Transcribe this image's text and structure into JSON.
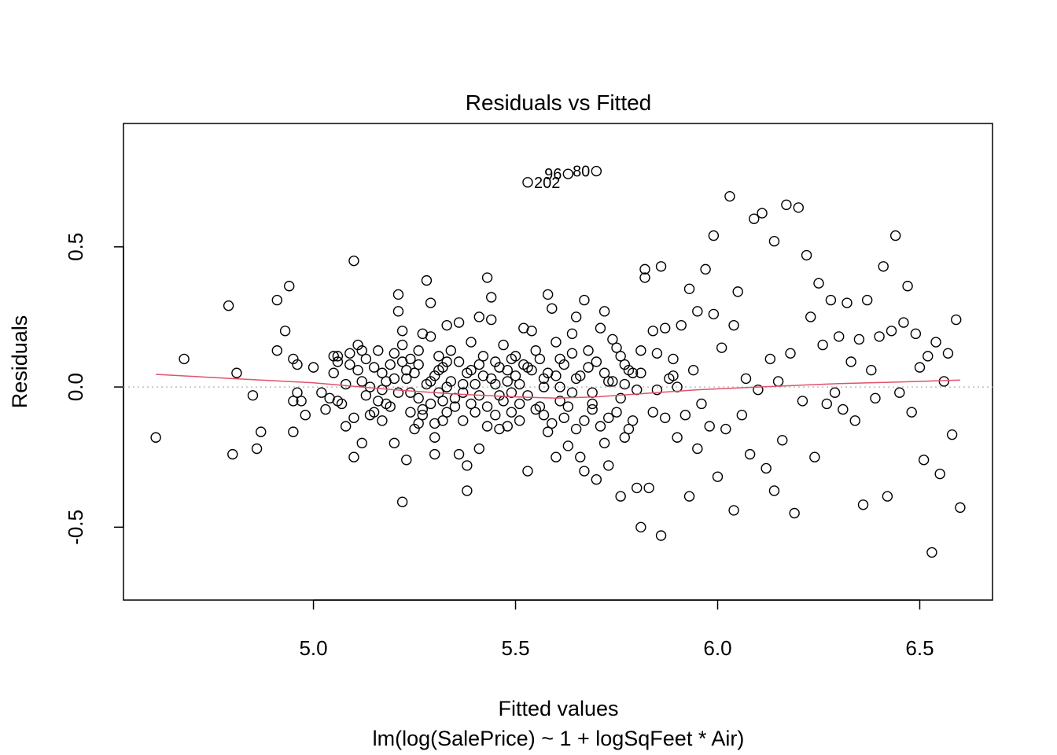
{
  "chart_data": {
    "type": "scatter",
    "title": "Residuals vs Fitted",
    "xlabel": "Fitted values",
    "subtitle": "lm(log(SalePrice) ~ 1 + logSqFeet * Air)",
    "ylabel": "Residuals",
    "xlim": [
      4.53,
      6.68
    ],
    "ylim": [
      -0.76,
      0.94
    ],
    "x_ticks": [
      5.0,
      5.5,
      6.0,
      6.5
    ],
    "x_tick_labels": [
      "5.0",
      "5.5",
      "6.0",
      "6.5"
    ],
    "y_ticks": [
      -0.5,
      0.0,
      0.5
    ],
    "y_tick_labels": [
      "-0.5",
      "0.0",
      "0.5"
    ],
    "reference_line_y": 0,
    "grid": false,
    "colors": {
      "points": "#000000",
      "smoother": "#DF536B",
      "reference": "#BEBEBE"
    },
    "labeled_points": [
      {
        "label": "96",
        "x": 5.63,
        "y": 0.76
      },
      {
        "label": "80",
        "x": 5.7,
        "y": 0.77
      },
      {
        "label": "202",
        "x": 5.53,
        "y": 0.73
      }
    ],
    "smoother": {
      "x": [
        4.61,
        4.8,
        5.0,
        5.2,
        5.35,
        5.5,
        5.6,
        5.7,
        5.8,
        5.95,
        6.1,
        6.3,
        6.45,
        6.6
      ],
      "y": [
        0.045,
        0.03,
        0.015,
        -0.01,
        -0.025,
        -0.035,
        -0.04,
        -0.035,
        -0.025,
        -0.01,
        0.0,
        0.012,
        0.018,
        0.025
      ]
    },
    "points": [
      [
        4.61,
        -0.18
      ],
      [
        4.68,
        0.1
      ],
      [
        4.79,
        0.29
      ],
      [
        4.8,
        -0.24
      ],
      [
        4.81,
        0.05
      ],
      [
        4.85,
        -0.03
      ],
      [
        4.86,
        -0.22
      ],
      [
        4.87,
        -0.16
      ],
      [
        4.91,
        0.31
      ],
      [
        4.91,
        0.13
      ],
      [
        4.93,
        0.2
      ],
      [
        4.94,
        0.36
      ],
      [
        4.95,
        0.1
      ],
      [
        4.95,
        -0.05
      ],
      [
        4.95,
        -0.16
      ],
      [
        4.96,
        0.08
      ],
      [
        4.96,
        -0.02
      ],
      [
        4.97,
        -0.05
      ],
      [
        4.98,
        -0.1
      ],
      [
        5.0,
        0.07
      ],
      [
        5.02,
        -0.02
      ],
      [
        5.03,
        -0.08
      ],
      [
        5.04,
        -0.04
      ],
      [
        5.05,
        0.05
      ],
      [
        5.06,
        -0.05
      ],
      [
        5.06,
        0.11
      ],
      [
        5.07,
        -0.06
      ],
      [
        5.08,
        -0.14
      ],
      [
        5.09,
        0.12
      ],
      [
        5.09,
        0.08
      ],
      [
        5.1,
        0.45
      ],
      [
        5.1,
        -0.11
      ],
      [
        5.1,
        -0.25
      ],
      [
        5.11,
        0.15
      ],
      [
        5.12,
        0.02
      ],
      [
        5.12,
        -0.2
      ],
      [
        5.13,
        0.1
      ],
      [
        5.13,
        -0.03
      ],
      [
        5.14,
        0.0
      ],
      [
        5.15,
        -0.09
      ],
      [
        5.16,
        0.13
      ],
      [
        5.17,
        0.05
      ],
      [
        5.17,
        -0.12
      ],
      [
        5.18,
        -0.06
      ],
      [
        5.2,
        0.12
      ],
      [
        5.2,
        0.03
      ],
      [
        5.2,
        -0.2
      ],
      [
        5.21,
        0.33
      ],
      [
        5.21,
        0.27
      ],
      [
        5.22,
        0.2
      ],
      [
        5.22,
        0.15
      ],
      [
        5.22,
        -0.41
      ],
      [
        5.23,
        0.06
      ],
      [
        5.23,
        -0.26
      ],
      [
        5.24,
        0.1
      ],
      [
        5.24,
        -0.02
      ],
      [
        5.25,
        -0.15
      ],
      [
        5.26,
        0.08
      ],
      [
        5.26,
        -0.13
      ],
      [
        5.27,
        0.19
      ],
      [
        5.27,
        -0.08
      ],
      [
        5.28,
        0.38
      ],
      [
        5.29,
        0.3
      ],
      [
        5.29,
        0.18
      ],
      [
        5.29,
        0.02
      ],
      [
        5.3,
        -0.18
      ],
      [
        5.3,
        -0.24
      ],
      [
        5.31,
        0.11
      ],
      [
        5.31,
        0.06
      ],
      [
        5.32,
        -0.05
      ],
      [
        5.32,
        -0.12
      ],
      [
        5.33,
        0.22
      ],
      [
        5.33,
        0.0
      ],
      [
        5.34,
        0.13
      ],
      [
        5.35,
        -0.07
      ],
      [
        5.36,
        0.23
      ],
      [
        5.36,
        -0.24
      ],
      [
        5.37,
        0.01
      ],
      [
        5.38,
        -0.28
      ],
      [
        5.38,
        -0.37
      ],
      [
        5.39,
        0.16
      ],
      [
        5.39,
        0.06
      ],
      [
        5.4,
        -0.09
      ],
      [
        5.41,
        0.25
      ],
      [
        5.41,
        -0.22
      ],
      [
        5.42,
        0.04
      ],
      [
        5.43,
        0.39
      ],
      [
        5.43,
        -0.14
      ],
      [
        5.44,
        0.32
      ],
      [
        5.44,
        0.24
      ],
      [
        5.45,
        0.09
      ],
      [
        5.46,
        -0.03
      ],
      [
        5.46,
        -0.15
      ],
      [
        5.47,
        0.15
      ],
      [
        5.48,
        0.06
      ],
      [
        5.48,
        -0.14
      ],
      [
        5.49,
        -0.02
      ],
      [
        5.5,
        0.11
      ],
      [
        5.51,
        0.01
      ],
      [
        5.51,
        -0.06
      ],
      [
        5.52,
        0.21
      ],
      [
        5.53,
        -0.3
      ],
      [
        5.54,
        0.2
      ],
      [
        5.55,
        0.13
      ],
      [
        5.56,
        -0.07
      ],
      [
        5.57,
        0.0
      ],
      [
        5.58,
        0.33
      ],
      [
        5.58,
        -0.16
      ],
      [
        5.59,
        0.28
      ],
      [
        5.6,
        0.04
      ],
      [
        5.6,
        -0.25
      ],
      [
        5.61,
        0.1
      ],
      [
        5.62,
        -0.11
      ],
      [
        5.63,
        -0.21
      ],
      [
        5.64,
        0.19
      ],
      [
        5.64,
        -0.02
      ],
      [
        5.65,
        0.25
      ],
      [
        5.66,
        -0.25
      ],
      [
        5.67,
        0.31
      ],
      [
        5.67,
        -0.3
      ],
      [
        5.68,
        0.07
      ],
      [
        5.69,
        -0.08
      ],
      [
        5.7,
        -0.33
      ],
      [
        5.71,
        0.21
      ],
      [
        5.72,
        0.27
      ],
      [
        5.72,
        -0.2
      ],
      [
        5.73,
        -0.28
      ],
      [
        5.74,
        0.02
      ],
      [
        5.75,
        0.14
      ],
      [
        5.76,
        -0.04
      ],
      [
        5.76,
        -0.39
      ],
      [
        5.77,
        0.08
      ],
      [
        5.78,
        -0.15
      ],
      [
        5.79,
        0.05
      ],
      [
        5.8,
        -0.36
      ],
      [
        5.8,
        -0.01
      ],
      [
        5.81,
        0.13
      ],
      [
        5.81,
        -0.5
      ],
      [
        5.82,
        0.39
      ],
      [
        5.82,
        0.42
      ],
      [
        5.83,
        -0.36
      ],
      [
        5.84,
        0.2
      ],
      [
        5.84,
        -0.09
      ],
      [
        5.85,
        0.12
      ],
      [
        5.86,
        0.43
      ],
      [
        5.86,
        -0.53
      ],
      [
        5.87,
        0.21
      ],
      [
        5.87,
        -0.11
      ],
      [
        5.88,
        0.03
      ],
      [
        5.89,
        0.1
      ],
      [
        5.9,
        -0.18
      ],
      [
        5.9,
        0.0
      ],
      [
        5.91,
        0.22
      ],
      [
        5.92,
        -0.1
      ],
      [
        5.93,
        0.35
      ],
      [
        5.93,
        -0.39
      ],
      [
        5.94,
        0.06
      ],
      [
        5.95,
        0.27
      ],
      [
        5.95,
        -0.22
      ],
      [
        5.96,
        -0.06
      ],
      [
        5.97,
        0.42
      ],
      [
        5.98,
        -0.14
      ],
      [
        5.99,
        0.54
      ],
      [
        5.99,
        0.26
      ],
      [
        6.0,
        -0.32
      ],
      [
        6.01,
        0.14
      ],
      [
        6.02,
        -0.15
      ],
      [
        6.03,
        0.68
      ],
      [
        6.04,
        0.22
      ],
      [
        6.04,
        -0.44
      ],
      [
        6.05,
        0.34
      ],
      [
        6.06,
        -0.1
      ],
      [
        6.07,
        0.03
      ],
      [
        6.08,
        -0.24
      ],
      [
        6.09,
        0.6
      ],
      [
        6.1,
        -0.01
      ],
      [
        6.11,
        0.62
      ],
      [
        6.12,
        -0.29
      ],
      [
        6.13,
        0.1
      ],
      [
        6.14,
        0.52
      ],
      [
        6.14,
        -0.37
      ],
      [
        6.15,
        0.02
      ],
      [
        6.16,
        -0.19
      ],
      [
        6.17,
        0.65
      ],
      [
        6.18,
        0.12
      ],
      [
        6.19,
        -0.45
      ],
      [
        6.2,
        0.64
      ],
      [
        6.21,
        -0.05
      ],
      [
        6.22,
        0.47
      ],
      [
        6.23,
        0.25
      ],
      [
        6.24,
        -0.25
      ],
      [
        6.25,
        0.37
      ],
      [
        6.26,
        0.15
      ],
      [
        6.27,
        -0.06
      ],
      [
        6.28,
        0.31
      ],
      [
        6.29,
        -0.02
      ],
      [
        6.3,
        0.18
      ],
      [
        6.31,
        -0.08
      ],
      [
        6.32,
        0.3
      ],
      [
        6.33,
        0.09
      ],
      [
        6.34,
        -0.12
      ],
      [
        6.35,
        0.17
      ],
      [
        6.36,
        -0.42
      ],
      [
        6.37,
        0.31
      ],
      [
        6.38,
        0.06
      ],
      [
        6.39,
        -0.04
      ],
      [
        6.4,
        0.18
      ],
      [
        6.41,
        0.43
      ],
      [
        6.42,
        -0.39
      ],
      [
        6.43,
        0.2
      ],
      [
        6.44,
        0.54
      ],
      [
        6.45,
        -0.02
      ],
      [
        6.46,
        0.23
      ],
      [
        6.47,
        0.36
      ],
      [
        6.48,
        -0.09
      ],
      [
        6.49,
        0.19
      ],
      [
        6.5,
        0.07
      ],
      [
        6.51,
        -0.26
      ],
      [
        6.52,
        0.11
      ],
      [
        6.53,
        -0.59
      ],
      [
        6.54,
        0.16
      ],
      [
        6.55,
        -0.31
      ],
      [
        6.56,
        0.02
      ],
      [
        6.57,
        0.12
      ],
      [
        6.58,
        -0.17
      ],
      [
        6.59,
        0.24
      ],
      [
        6.6,
        -0.43
      ],
      [
        5.06,
        0.09
      ],
      [
        5.11,
        0.06
      ],
      [
        5.14,
        -0.1
      ],
      [
        5.16,
        -0.05
      ],
      [
        5.18,
        0.02
      ],
      [
        5.19,
        0.08
      ],
      [
        5.21,
        -0.02
      ],
      [
        5.23,
        0.03
      ],
      [
        5.24,
        -0.09
      ],
      [
        5.25,
        0.05
      ],
      [
        5.26,
        -0.04
      ],
      [
        5.27,
        -0.1
      ],
      [
        5.28,
        0.01
      ],
      [
        5.29,
        -0.06
      ],
      [
        5.3,
        0.04
      ],
      [
        5.31,
        -0.02
      ],
      [
        5.32,
        0.07
      ],
      [
        5.33,
        -0.09
      ],
      [
        5.34,
        0.02
      ],
      [
        5.35,
        -0.04
      ],
      [
        5.36,
        0.09
      ],
      [
        5.37,
        -0.12
      ],
      [
        5.38,
        0.05
      ],
      [
        5.39,
        -0.06
      ],
      [
        5.4,
        0.01
      ],
      [
        5.41,
        -0.03
      ],
      [
        5.42,
        0.11
      ],
      [
        5.43,
        -0.07
      ],
      [
        5.44,
        0.03
      ],
      [
        5.45,
        -0.1
      ],
      [
        5.46,
        0.07
      ],
      [
        5.47,
        -0.05
      ],
      [
        5.48,
        0.02
      ],
      [
        5.49,
        -0.09
      ],
      [
        5.5,
        0.04
      ],
      [
        5.51,
        -0.12
      ],
      [
        5.52,
        0.08
      ],
      [
        5.53,
        -0.03
      ],
      [
        5.54,
        0.06
      ],
      [
        5.55,
        -0.08
      ],
      [
        5.56,
        0.1
      ],
      [
        5.57,
        -0.1
      ],
      [
        5.58,
        0.05
      ],
      [
        5.59,
        -0.13
      ],
      [
        5.6,
        0.16
      ],
      [
        5.61,
        -0.05
      ],
      [
        5.62,
        0.08
      ],
      [
        5.63,
        -0.07
      ],
      [
        5.64,
        0.12
      ],
      [
        5.65,
        -0.15
      ],
      [
        5.66,
        0.04
      ],
      [
        5.67,
        -0.12
      ],
      [
        5.68,
        0.13
      ],
      [
        5.69,
        -0.06
      ],
      [
        5.7,
        0.09
      ],
      [
        5.71,
        -0.14
      ],
      [
        5.72,
        0.05
      ],
      [
        5.73,
        -0.11
      ],
      [
        5.74,
        0.17
      ],
      [
        5.75,
        -0.09
      ],
      [
        5.76,
        0.11
      ],
      [
        5.77,
        -0.18
      ],
      [
        5.78,
        0.06
      ],
      [
        5.79,
        -0.12
      ],
      [
        5.05,
        0.11
      ],
      [
        5.08,
        0.01
      ],
      [
        5.12,
        0.13
      ],
      [
        5.15,
        0.07
      ],
      [
        5.17,
        -0.01
      ],
      [
        5.19,
        -0.07
      ],
      [
        5.22,
        0.09
      ],
      [
        5.26,
        0.13
      ],
      [
        5.3,
        -0.13
      ],
      [
        5.33,
        0.09
      ],
      [
        5.37,
        -0.02
      ],
      [
        5.41,
        0.08
      ],
      [
        5.45,
        0.01
      ],
      [
        5.49,
        0.1
      ],
      [
        5.53,
        0.07
      ],
      [
        5.57,
        0.03
      ],
      [
        5.61,
        0.0
      ],
      [
        5.65,
        0.03
      ],
      [
        5.69,
        -0.02
      ],
      [
        5.73,
        0.02
      ],
      [
        5.77,
        0.01
      ],
      [
        5.81,
        0.05
      ],
      [
        5.85,
        -0.01
      ],
      [
        5.89,
        0.04
      ]
    ]
  }
}
